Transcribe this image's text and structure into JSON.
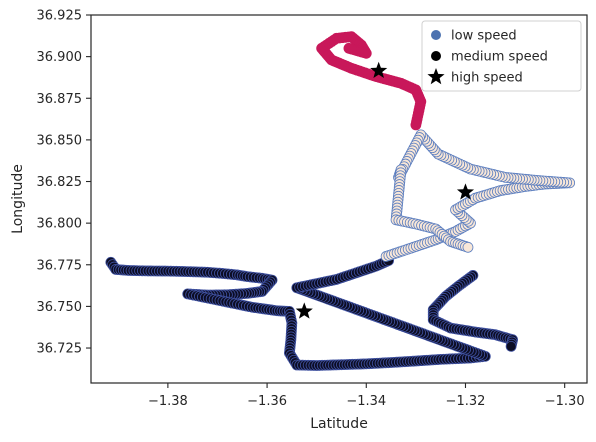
{
  "chart_data": {
    "type": "scatter",
    "title": "",
    "xlabel": "Latitude",
    "ylabel": "Longitude",
    "xlim": [
      -1.3955,
      -1.2955
    ],
    "ylim": [
      36.704,
      36.925
    ],
    "xticks": [
      -1.38,
      -1.36,
      -1.34,
      -1.32,
      -1.3
    ],
    "xtick_labels": [
      "−1.38",
      "−1.36",
      "−1.34",
      "−1.32",
      "−1.30"
    ],
    "yticks": [
      36.725,
      36.75,
      36.775,
      36.8,
      36.825,
      36.85,
      36.875,
      36.9,
      36.925
    ],
    "ytick_labels": [
      "36.725",
      "36.750",
      "36.775",
      "36.800",
      "36.825",
      "36.850",
      "36.875",
      "36.900",
      "36.925"
    ],
    "grid": false,
    "legend_position": "top-right",
    "legend": [
      {
        "label": "low speed",
        "marker": "dot",
        "color": "#4c72b0"
      },
      {
        "label": "medium speed",
        "marker": "dot",
        "color": "#000000"
      },
      {
        "label": "high speed",
        "marker": "star",
        "color": "#000000"
      }
    ],
    "segments": [
      {
        "name": "dark-route",
        "color": "#0c0d24",
        "edge": "#3f51a0",
        "points": [
          [
            -1.3915,
            36.7765
          ],
          [
            -1.3905,
            36.7722
          ],
          [
            -1.388,
            36.7716
          ],
          [
            -1.384,
            36.7713
          ],
          [
            -1.38,
            36.7712
          ],
          [
            -1.376,
            36.7709
          ],
          [
            -1.372,
            36.7705
          ],
          [
            -1.369,
            36.7698
          ],
          [
            -1.366,
            36.7689
          ],
          [
            -1.364,
            36.7679
          ],
          [
            -1.361,
            36.7669
          ],
          [
            -1.359,
            36.7658
          ],
          [
            -1.361,
            36.759
          ],
          [
            -1.364,
            36.7578
          ],
          [
            -1.368,
            36.757
          ],
          [
            -1.372,
            36.7568
          ],
          [
            -1.376,
            36.7575
          ],
          [
            -1.363,
            36.7495
          ],
          [
            -1.358,
            36.7474
          ],
          [
            -1.3555,
            36.747
          ],
          [
            -1.355,
            36.74
          ],
          [
            -1.3552,
            36.73
          ],
          [
            -1.3555,
            36.722
          ],
          [
            -1.354,
            36.7148
          ],
          [
            -1.35,
            36.7145
          ],
          [
            -1.345,
            36.715
          ],
          [
            -1.34,
            36.7155
          ],
          [
            -1.335,
            36.7163
          ],
          [
            -1.33,
            36.7172
          ],
          [
            -1.325,
            36.7182
          ],
          [
            -1.319,
            36.719
          ],
          [
            -1.316,
            36.72
          ],
          [
            -1.354,
            36.7612
          ],
          [
            -1.35,
            36.7637
          ],
          [
            -1.346,
            36.7662
          ],
          [
            -1.342,
            36.7702
          ],
          [
            -1.338,
            36.7742
          ],
          [
            -1.3355,
            36.7775
          ]
        ]
      },
      {
        "name": "dark-branch",
        "color": "#0c0d24",
        "edge": "#3f51a0",
        "points": [
          [
            -1.3185,
            36.7686
          ],
          [
            -1.3215,
            36.762
          ],
          [
            -1.324,
            36.756
          ],
          [
            -1.3265,
            36.748
          ],
          [
            -1.3265,
            36.742
          ],
          [
            -1.323,
            36.737
          ],
          [
            -1.318,
            36.7346
          ],
          [
            -1.314,
            36.733
          ],
          [
            -1.3105,
            36.73
          ],
          [
            -1.3108,
            36.726
          ]
        ]
      },
      {
        "name": "cream-route",
        "color": "#f8e7d8",
        "edge": "#5b7ec0",
        "points": [
          [
            -1.336,
            36.78
          ],
          [
            -1.331,
            36.785
          ],
          [
            -1.326,
            36.79
          ],
          [
            -1.322,
            36.795
          ],
          [
            -1.319,
            36.8
          ],
          [
            -1.322,
            36.808
          ],
          [
            -1.318,
            36.815
          ],
          [
            -1.313,
            36.8195
          ],
          [
            -1.308,
            36.822
          ],
          [
            -1.304,
            36.8235
          ],
          [
            -1.299,
            36.8242
          ],
          [
            -1.305,
            36.8255
          ],
          [
            -1.312,
            36.8275
          ],
          [
            -1.319,
            36.8325
          ],
          [
            -1.3255,
            36.8415
          ],
          [
            -1.329,
            36.853
          ],
          [
            -1.3335,
            36.8275
          ],
          [
            -1.333,
            36.832
          ],
          [
            -1.334,
            36.802
          ],
          [
            -1.33,
            36.7995
          ],
          [
            -1.326,
            36.7965
          ],
          [
            -1.323,
            36.789
          ],
          [
            -1.3195,
            36.7855
          ]
        ]
      },
      {
        "name": "red-route",
        "color": "#c8185a",
        "edge": "#c8185a",
        "points": [
          [
            -1.33,
            36.859
          ],
          [
            -1.3295,
            36.866
          ],
          [
            -1.329,
            36.873
          ],
          [
            -1.33,
            36.88
          ],
          [
            -1.333,
            36.884
          ],
          [
            -1.338,
            36.888
          ],
          [
            -1.343,
            36.893
          ],
          [
            -1.347,
            36.898
          ],
          [
            -1.349,
            36.905
          ],
          [
            -1.346,
            36.911
          ],
          [
            -1.343,
            36.912
          ],
          [
            -1.341,
            36.907
          ],
          [
            -1.34,
            36.902
          ],
          [
            -1.3435,
            36.905
          ]
        ]
      }
    ],
    "high_speed_stars": [
      {
        "x": -1.3375,
        "y": 36.8915
      },
      {
        "x": -1.32,
        "y": 36.8185
      },
      {
        "x": -1.3525,
        "y": 36.747
      }
    ]
  }
}
